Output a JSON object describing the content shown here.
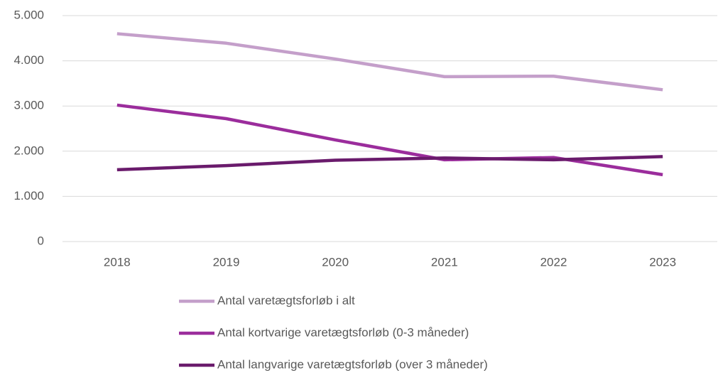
{
  "chart_data": {
    "type": "line",
    "categories": [
      "2018",
      "2019",
      "2020",
      "2021",
      "2022",
      "2023"
    ],
    "series": [
      {
        "name": "Antal varetægtsforløb i alt",
        "color": "#c49fca",
        "values": [
          4600,
          4390,
          4040,
          3650,
          3660,
          3360
        ]
      },
      {
        "name": "Antal kortvarige varetægtsforløb (0-3 måneder)",
        "color": "#9b2d9c",
        "values": [
          3020,
          2720,
          2250,
          1810,
          1860,
          1480
        ]
      },
      {
        "name": "Antal langvarige varetægtsforløb (over 3 måneder)",
        "color": "#6a1b6c",
        "values": [
          1590,
          1680,
          1800,
          1850,
          1810,
          1880
        ]
      }
    ],
    "ylim": [
      0,
      5000
    ],
    "yticks": [
      0,
      {
        "value": 1000,
        "label": "1.000"
      },
      {
        "value": 2000,
        "label": "2.000"
      },
      {
        "value": 3000,
        "label": "3.000"
      },
      {
        "value": 4000,
        "label": "4.000"
      },
      {
        "value": 5000,
        "label": "5.000"
      }
    ],
    "grid": true,
    "legend": "bottom"
  }
}
